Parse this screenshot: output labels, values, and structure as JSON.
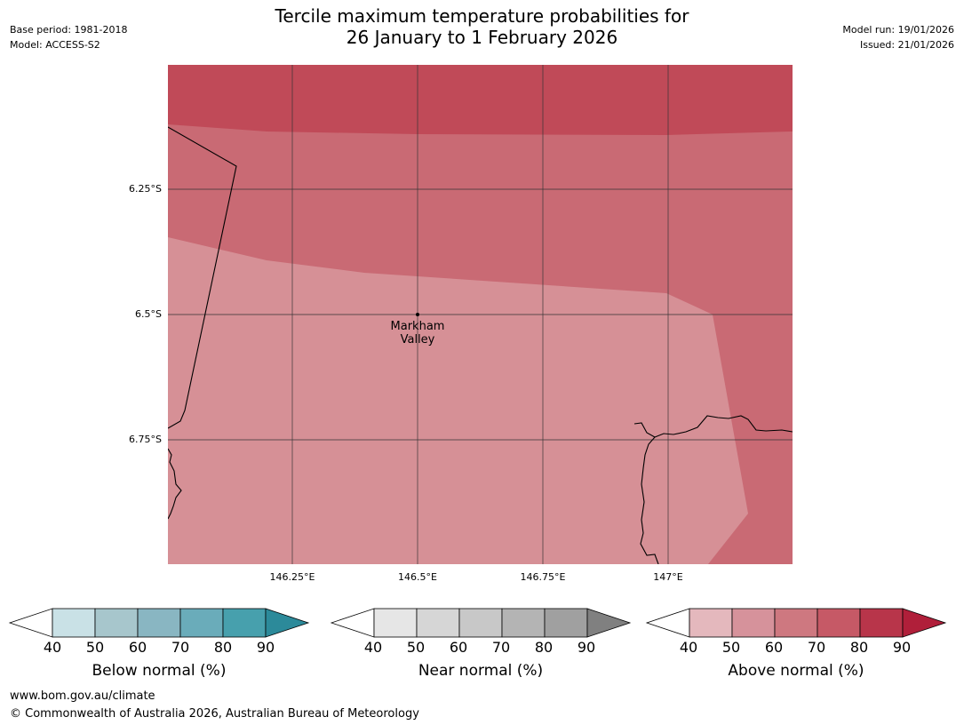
{
  "header": {
    "title_line1": "Tercile maximum temperature probabilities for",
    "title_line2": "26 January to 1 February 2026",
    "base_period": "Base period: 1981-2018",
    "model": "Model: ACCESS-S2",
    "model_run": "Model run: 19/01/2026",
    "issued": "Issued: 21/01/2026"
  },
  "map": {
    "place_line1": "Markham",
    "place_line2": "Valley",
    "lat_ticks": [
      "6.25°S",
      "6.5°S",
      "6.75°S"
    ],
    "lon_ticks": [
      "146.25°E",
      "146.5°E",
      "146.75°E",
      "147°E"
    ],
    "zone_colors": {
      "top": "#c04a58",
      "mid": "#c96a74",
      "low": "#d69096"
    }
  },
  "legends": [
    {
      "label": "Below normal (%)",
      "ticks": [
        "40",
        "50",
        "60",
        "70",
        "80",
        "90"
      ],
      "colors": [
        "#c9e1e6",
        "#a7c6cc",
        "#89b6c2",
        "#6aacba",
        "#47a0ad",
        "#2c8a9a"
      ]
    },
    {
      "label": "Near normal (%)",
      "ticks": [
        "40",
        "50",
        "60",
        "70",
        "80",
        "90"
      ],
      "colors": [
        "#e6e6e6",
        "#d6d6d6",
        "#c8c8c8",
        "#b4b4b4",
        "#a0a0a0",
        "#808080"
      ]
    },
    {
      "label": "Above normal (%)",
      "ticks": [
        "40",
        "50",
        "60",
        "70",
        "80",
        "90"
      ],
      "colors": [
        "#e4b8bd",
        "#d6929b",
        "#ce7880",
        "#c65966",
        "#b8354a",
        "#b01f3a"
      ]
    }
  ],
  "footer": {
    "website": "www.bom.gov.au/climate",
    "copyright": "© Commonwealth of Australia 2026, Australian Bureau of Meteorology"
  }
}
